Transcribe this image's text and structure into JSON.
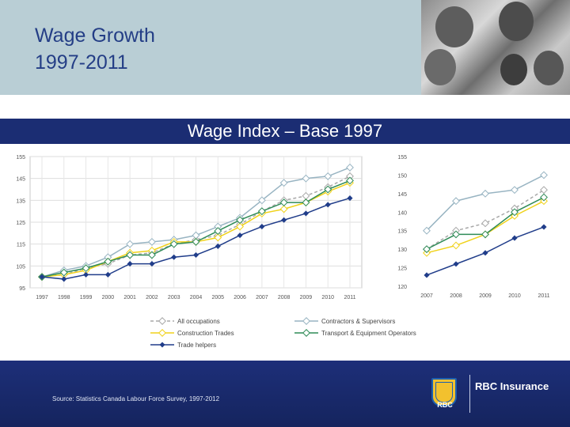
{
  "title_line1": "Wage Growth",
  "title_line2": "1997-2011",
  "subtitle": "Wage Index – Base 1997",
  "source": "Source: Statistics Canada Labour Force Survey, 1997-2012",
  "brand": "RBC Insurance",
  "logo_text": "RBC",
  "colors": {
    "header_bg": "#b9ced5",
    "title": "#243e86",
    "band": "#1b2d73",
    "all_occupations": "#a8a8a8",
    "contractors": "#98b4c2",
    "construction": "#f0d21a",
    "transport": "#2f8b57",
    "helpers": "#203d8a"
  },
  "chart_data": [
    {
      "type": "line",
      "x": [
        "1997",
        "1998",
        "1999",
        "2000",
        "2001",
        "2002",
        "2003",
        "2004",
        "2005",
        "2006",
        "2007",
        "2008",
        "2009",
        "2010",
        "2011"
      ],
      "ylim": [
        95,
        155
      ],
      "yticks": [
        95,
        105,
        115,
        125,
        135,
        145,
        155
      ],
      "grid": true,
      "legend_position": "bottom",
      "series": [
        {
          "name": "All occupations",
          "style": "dashed",
          "color_key": "all_occupations",
          "values": [
            100,
            101,
            104,
            106,
            110,
            111,
            115,
            117,
            119,
            124,
            130,
            135,
            137,
            141,
            146
          ]
        },
        {
          "name": "Contractors & Supervisors",
          "style": "solid",
          "color_key": "contractors",
          "values": [
            100,
            103,
            105,
            109,
            115,
            116,
            117,
            119,
            123,
            127,
            135,
            143,
            145,
            146,
            150
          ]
        },
        {
          "name": "Construction Trades",
          "style": "solid",
          "color_key": "construction",
          "values": [
            100,
            101,
            103,
            107,
            111,
            112,
            116,
            116,
            118,
            123,
            129,
            131,
            134,
            139,
            143
          ]
        },
        {
          "name": "Transport & Equipment Operators",
          "style": "solid",
          "color_key": "transport",
          "values": [
            100,
            102,
            104,
            107,
            110,
            110,
            115,
            116,
            121,
            126,
            130,
            134,
            134,
            140,
            144
          ]
        },
        {
          "name": "Trade helpers",
          "style": "solid",
          "color_key": "helpers",
          "values": [
            100,
            99,
            101,
            101,
            106,
            106,
            109,
            110,
            114,
            119,
            123,
            126,
            129,
            133,
            136
          ]
        }
      ]
    },
    {
      "type": "line",
      "x": [
        "2007",
        "2008",
        "2009",
        "2010",
        "2011"
      ],
      "ylim": [
        120,
        155
      ],
      "yticks": [
        120,
        125,
        130,
        135,
        140,
        145,
        150,
        155
      ],
      "grid": false,
      "series": [
        {
          "name": "All occupations",
          "style": "dashed",
          "color_key": "all_occupations",
          "values": [
            130,
            135,
            137,
            141,
            146
          ]
        },
        {
          "name": "Contractors & Supervisors",
          "style": "solid",
          "color_key": "contractors",
          "values": [
            135,
            143,
            145,
            146,
            150
          ]
        },
        {
          "name": "Construction Trades",
          "style": "solid",
          "color_key": "construction",
          "values": [
            129,
            131,
            134,
            139,
            143
          ]
        },
        {
          "name": "Transport & Equipment Operators",
          "style": "solid",
          "color_key": "transport",
          "values": [
            130,
            134,
            134,
            140,
            144
          ]
        },
        {
          "name": "Trade helpers",
          "style": "solid",
          "color_key": "helpers",
          "values": [
            123,
            126,
            129,
            133,
            136
          ]
        }
      ]
    }
  ]
}
